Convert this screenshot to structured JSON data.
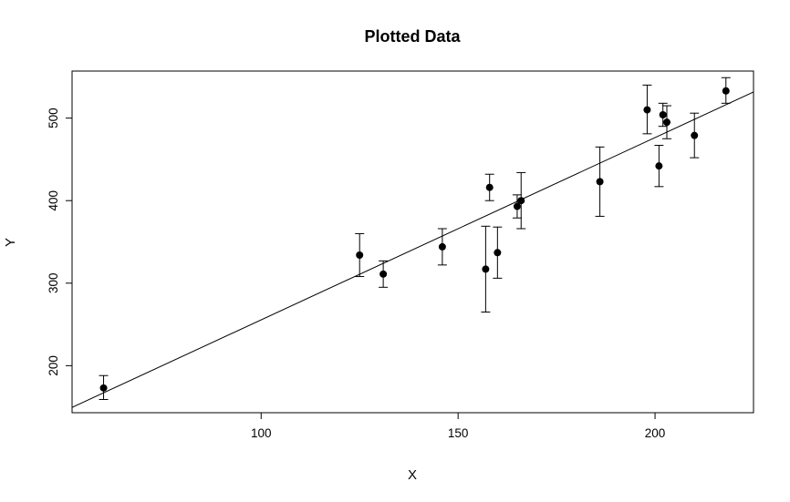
{
  "chart_data": {
    "type": "scatter",
    "title": "Plotted Data",
    "xlabel": "X",
    "ylabel": "Y",
    "xlim": [
      52,
      225
    ],
    "ylim": [
      143,
      557
    ],
    "xticks": [
      100,
      150,
      200
    ],
    "yticks": [
      200,
      300,
      400,
      500
    ],
    "grid": false,
    "legend": "none",
    "colors": {
      "points": "#000000",
      "line": "#000000"
    },
    "points": [
      {
        "x": 60,
        "y": 173,
        "lo": 159,
        "hi": 188
      },
      {
        "x": 125,
        "y": 334,
        "lo": 308,
        "hi": 360
      },
      {
        "x": 131,
        "y": 311,
        "lo": 295,
        "hi": 327
      },
      {
        "x": 146,
        "y": 344,
        "lo": 322,
        "hi": 366
      },
      {
        "x": 157,
        "y": 317,
        "lo": 265,
        "hi": 369
      },
      {
        "x": 158,
        "y": 416,
        "lo": 400,
        "hi": 432
      },
      {
        "x": 160,
        "y": 337,
        "lo": 306,
        "hi": 368
      },
      {
        "x": 165,
        "y": 393,
        "lo": 379,
        "hi": 407
      },
      {
        "x": 166,
        "y": 400,
        "lo": 366,
        "hi": 434
      },
      {
        "x": 186,
        "y": 423,
        "lo": 381,
        "hi": 465
      },
      {
        "x": 198,
        "y": 510,
        "lo": 481,
        "hi": 540
      },
      {
        "x": 201,
        "y": 442,
        "lo": 417,
        "hi": 467
      },
      {
        "x": 202,
        "y": 504,
        "lo": 490,
        "hi": 518
      },
      {
        "x": 203,
        "y": 495,
        "lo": 475,
        "hi": 515
      },
      {
        "x": 210,
        "y": 479,
        "lo": 452,
        "hi": 506
      },
      {
        "x": 218,
        "y": 533,
        "lo": 518,
        "hi": 549
      }
    ],
    "fit_line": {
      "intercept": 34.6,
      "slope": 2.209
    }
  }
}
